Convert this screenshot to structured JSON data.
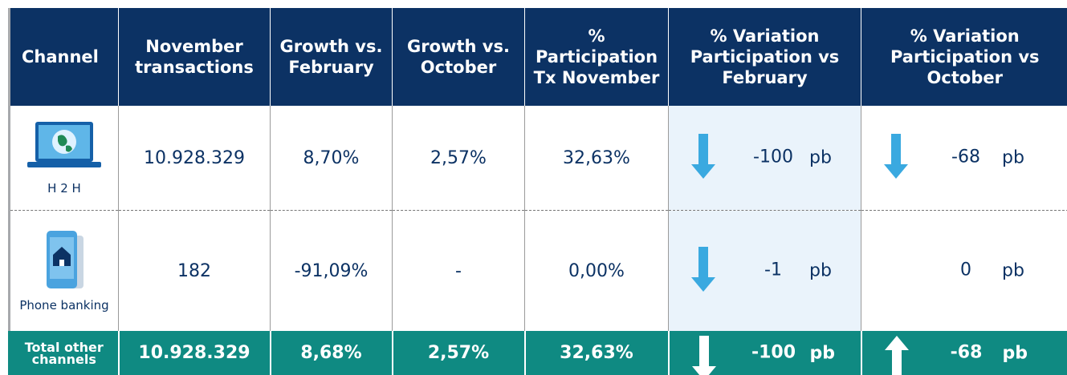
{
  "table": {
    "header": [
      "Channel",
      "November transactions",
      "Growth vs. February",
      "Growth vs. October",
      "% Participation Tx November",
      "% Variation Participation vs February",
      "% Variation Participation vs October"
    ],
    "rows": [
      {
        "channel": "H 2 H",
        "cells": [
          "10.928.329",
          "8,70%",
          "2,57%",
          "32,63%"
        ],
        "variations": [
          {
            "value": "-100",
            "unit": "pb"
          },
          {
            "value": "-68",
            "unit": "pb"
          }
        ]
      },
      {
        "channel": "Phone banking",
        "cells": [
          "182",
          "-91,09%",
          "-",
          "0,00%"
        ],
        "variations": [
          {
            "value": "-1",
            "unit": "pb"
          },
          {
            "value": "0",
            "unit": "pb"
          }
        ]
      },
      {
        "channel": "Total other channels",
        "cells": [
          "10.928.329",
          "8,68%",
          "2,57%",
          "32,63%"
        ],
        "variations": [
          {
            "value": "-100",
            "unit": "pb"
          },
          {
            "value": "-68",
            "unit": "pb"
          }
        ]
      }
    ]
  }
}
